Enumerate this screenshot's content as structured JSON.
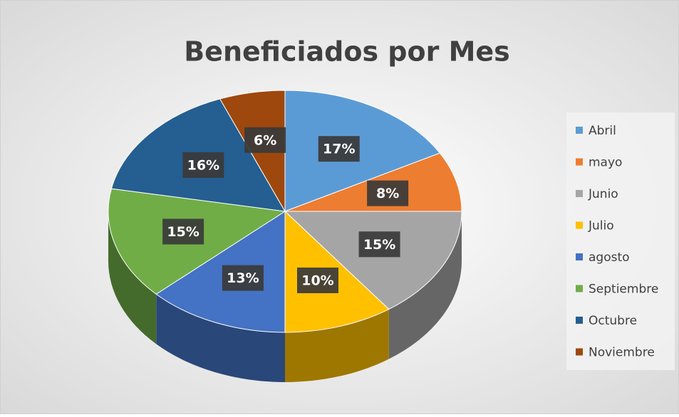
{
  "chart_data": {
    "type": "pie",
    "title": "Beneficiados por Mes",
    "categories": [
      "Abril",
      "mayo",
      "Junio",
      "Julio",
      "agosto",
      "Septiembre",
      "Octubre",
      "Noviembre"
    ],
    "values": [
      17,
      8,
      15,
      10,
      13,
      15,
      16,
      6
    ],
    "value_labels": [
      "17%",
      "8%",
      "15%",
      "10%",
      "13%",
      "15%",
      "16%",
      "6%"
    ],
    "colors": [
      "#5b9bd5",
      "#ed7d31",
      "#a5a5a5",
      "#ffc000",
      "#4472c4",
      "#70ad47",
      "#255e91",
      "#9e480e"
    ],
    "legend": "right",
    "three_d": true
  }
}
